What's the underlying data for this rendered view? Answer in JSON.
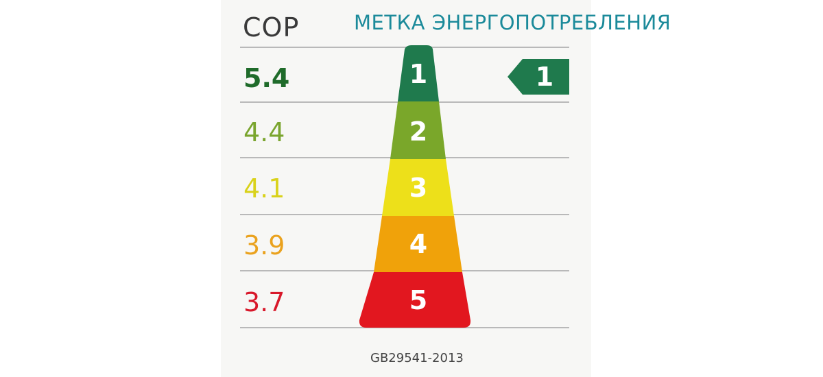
{
  "header": {
    "metric_label": "COP",
    "title": "МЕТКА ЭНЕРГОПОТРЕБЛЕНИЯ"
  },
  "classes": [
    {
      "number": "1",
      "cop": "5.4",
      "color": "#1f7a4d",
      "text_color": "#1f6b2a"
    },
    {
      "number": "2",
      "cop": "4.4",
      "color": "#7aa72a",
      "text_color": "#7aa52e"
    },
    {
      "number": "3",
      "cop": "4.1",
      "color": "#ede01a",
      "text_color": "#d9d21a"
    },
    {
      "number": "4",
      "cop": "3.9",
      "color": "#f0a20a",
      "text_color": "#eaa21e"
    },
    {
      "number": "5",
      "cop": "3.7",
      "color": "#e2171f",
      "text_color": "#d8182a"
    }
  ],
  "rating": {
    "number": "1",
    "color": "#1f7a4d"
  },
  "footer": {
    "standard": "GB29541-2013"
  }
}
